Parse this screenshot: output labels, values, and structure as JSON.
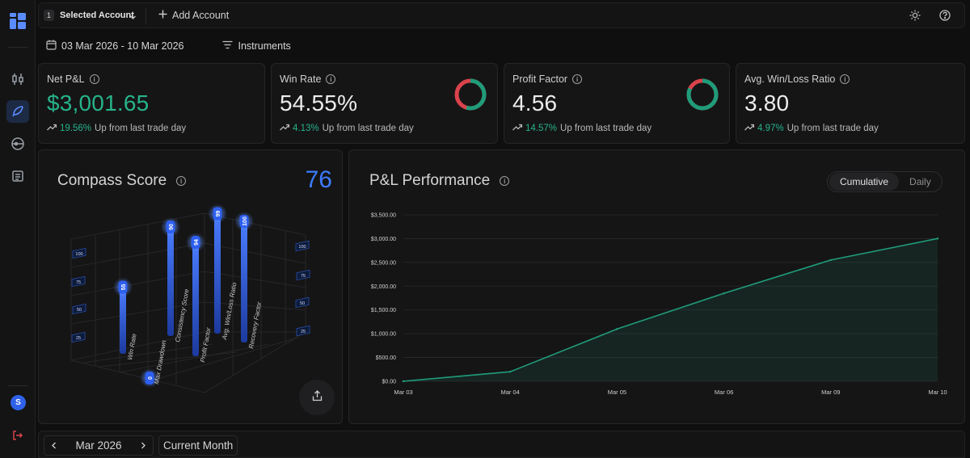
{
  "topbar": {
    "account_number": "1",
    "account_label": "Selected Account",
    "add_account_label": "Add Account"
  },
  "filters": {
    "date_range": "03 Mar 2026 - 10 Mar 2026",
    "instruments_label": "Instruments"
  },
  "stats": [
    {
      "title": "Net P&L",
      "value": "$3,001.65",
      "change_pct": "19.56%",
      "change_text": "Up from last trade day"
    },
    {
      "title": "Win Rate",
      "value": "54.55%",
      "change_pct": "4.13%",
      "change_text": "Up from last trade day",
      "donut_fraction": 0.5455
    },
    {
      "title": "Profit Factor",
      "value": "4.56",
      "change_pct": "14.57%",
      "change_text": "Up from last trade day",
      "donut_fraction": 0.82
    },
    {
      "title": "Avg. Win/Loss Ratio",
      "value": "3.80",
      "change_pct": "4.97%",
      "change_text": "Up from last trade day"
    }
  ],
  "compass": {
    "title": "Compass Score",
    "score": "76",
    "axis_ticks": [
      "100",
      "75",
      "50",
      "25"
    ],
    "metrics": [
      {
        "name": "Win Rate",
        "value": 55
      },
      {
        "name": "Max Drawdown",
        "value": 0
      },
      {
        "name": "Consistency Score",
        "value": 90
      },
      {
        "name": "Profit Factor",
        "value": 94
      },
      {
        "name": "Avg. Win/Loss Ratio",
        "value": 99
      },
      {
        "name": "Recovery Factor",
        "value": 100
      }
    ]
  },
  "pnl": {
    "title": "P&L Performance",
    "toggle": {
      "cumulative": "Cumulative",
      "daily": "Daily"
    }
  },
  "chart_data": {
    "type": "area",
    "title": "P&L Performance",
    "x": [
      "Mar 03",
      "Mar 04",
      "Mar 05",
      "Mar 06",
      "Mar 09",
      "Mar 10"
    ],
    "values": [
      0,
      200,
      1100,
      1850,
      2550,
      3001.65
    ],
    "y_ticks": [
      "$0.00",
      "$500.00",
      "$1,000.00",
      "$1,500.00",
      "$2,000.00",
      "$2,500.00",
      "$3,000.00",
      "$3,500.00"
    ],
    "ylim": [
      0,
      3500
    ],
    "grid": true,
    "color": "#1f9c7a"
  },
  "bottom": {
    "month_label": "Mar 2026",
    "current_month_label": "Current Month"
  },
  "sidebar": {
    "avatar_initial": "S"
  },
  "colors": {
    "accent_blue": "#3d7bff",
    "positive": "#27b38a",
    "negative": "#d9434c"
  }
}
